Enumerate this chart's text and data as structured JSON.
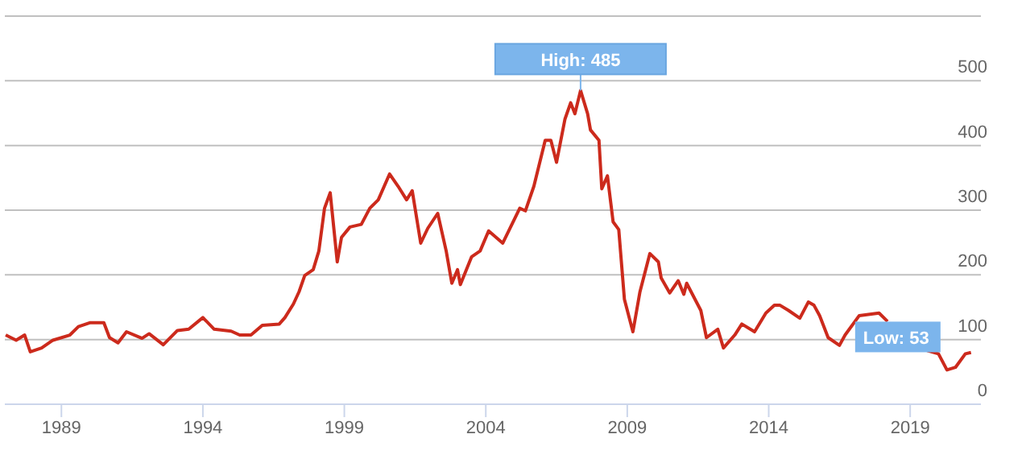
{
  "chart_data": {
    "type": "line",
    "xlim": [
      1987.0,
      2021.5
    ],
    "xticks": [
      1989,
      1994,
      1999,
      2004,
      2009,
      2014,
      2019
    ],
    "ylim": [
      0,
      600
    ],
    "yticks": [
      0,
      100,
      200,
      300,
      400,
      500,
      {
        "value": 600,
        "label": null
      }
    ],
    "grid": "y",
    "marker": "none",
    "line_style": "solid",
    "x": [
      1987.03,
      1987.4,
      1987.7,
      1987.9,
      1988.3,
      1988.7,
      1989.3,
      1989.6,
      1990.0,
      1990.5,
      1990.7,
      1991.0,
      1991.3,
      1991.85,
      1992.1,
      1992.6,
      1993.1,
      1993.5,
      1994.0,
      1994.4,
      1995.0,
      1995.3,
      1995.7,
      1996.1,
      1996.7,
      1996.9,
      1997.2,
      1997.4,
      1997.6,
      1997.9,
      1998.1,
      1998.3,
      1998.5,
      1998.75,
      1998.9,
      1999.2,
      1999.6,
      1999.9,
      2000.2,
      2000.6,
      2000.9,
      2001.2,
      2001.4,
      2001.7,
      2001.95,
      2002.3,
      2002.6,
      2002.8,
      2003.0,
      2003.1,
      2003.5,
      2003.8,
      2004.1,
      2004.6,
      2005.2,
      2005.4,
      2005.7,
      2006.1,
      2006.3,
      2006.5,
      2006.8,
      2007.0,
      2007.15,
      2007.35,
      2007.6,
      2007.7,
      2008.0,
      2008.1,
      2008.3,
      2008.5,
      2008.7,
      2008.9,
      2009.2,
      2009.45,
      2009.8,
      2010.1,
      2010.2,
      2010.5,
      2010.8,
      2011.0,
      2011.1,
      2011.6,
      2011.8,
      2012.2,
      2012.4,
      2012.8,
      2013.05,
      2013.5,
      2013.9,
      2014.2,
      2014.4,
      2014.7,
      2015.1,
      2015.4,
      2015.6,
      2015.8,
      2016.1,
      2016.5,
      2016.7,
      2017.2,
      2017.9,
      2018.2,
      2019.0,
      2019.6,
      2020.0,
      2020.3,
      2020.6,
      2020.95,
      2021.15
    ],
    "series": [
      {
        "color": "#cc2a1c",
        "values": [
          107,
          99,
          107,
          81,
          87,
          99,
          107,
          120,
          126,
          126,
          103,
          95,
          112,
          102,
          109,
          92,
          114,
          116,
          134,
          116,
          113,
          107,
          107,
          122,
          124,
          134,
          155,
          174,
          199,
          208,
          237,
          303,
          327,
          220,
          258,
          274,
          278,
          303,
          316,
          356,
          337,
          316,
          330,
          249,
          272,
          295,
          237,
          187,
          208,
          185,
          228,
          237,
          268,
          249,
          303,
          299,
          337,
          408,
          408,
          374,
          441,
          466,
          449,
          485,
          449,
          424,
          408,
          333,
          353,
          282,
          270,
          162,
          112,
          174,
          233,
          220,
          195,
          172,
          191,
          170,
          187,
          145,
          103,
          116,
          87,
          107,
          124,
          112,
          141,
          153,
          153,
          145,
          133,
          158,
          153,
          137,
          103,
          91,
          107,
          137,
          141,
          128,
          null,
          83,
          78,
          53,
          57,
          78,
          80
        ]
      }
    ],
    "annotations": [
      {
        "text": "High: 485",
        "x": 2007.35,
        "y": 485
      },
      {
        "text": "Low: 53",
        "x": 2020.3,
        "y": 53
      }
    ]
  }
}
